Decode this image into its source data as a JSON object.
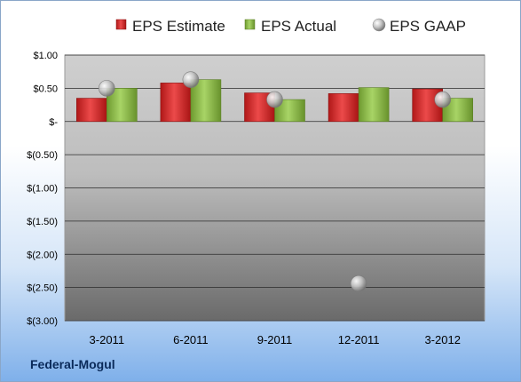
{
  "brand": "Federal-Mogul",
  "chart_data": {
    "type": "bar",
    "categories": [
      "3-2011",
      "6-2011",
      "9-2011",
      "12-2011",
      "3-2012"
    ],
    "series": [
      {
        "name": "EPS Estimate",
        "kind": "bar",
        "color": "#d42a2a",
        "values": [
          0.35,
          0.58,
          0.43,
          0.42,
          0.49
        ]
      },
      {
        "name": "EPS Actual",
        "kind": "bar",
        "color": "#8cbc48",
        "values": [
          0.5,
          0.63,
          0.33,
          0.51,
          0.35
        ]
      },
      {
        "name": "EPS GAAP",
        "kind": "point",
        "color": "#b8b8b8",
        "values": [
          0.5,
          0.63,
          0.33,
          -2.44,
          0.33
        ]
      }
    ],
    "ylim": [
      -3.0,
      1.0
    ],
    "yticks": [
      1.0,
      0.5,
      0,
      -0.5,
      -1.0,
      -1.5,
      -2.0,
      -2.5,
      -3.0
    ],
    "ytick_labels": [
      "$1.00",
      "$0.50",
      "$-",
      "$(0.50)",
      "$(1.00)",
      "$(1.50)",
      "$(2.00)",
      "$(2.50)",
      "$(3.00)"
    ],
    "grid": true,
    "legend_position": "top"
  }
}
